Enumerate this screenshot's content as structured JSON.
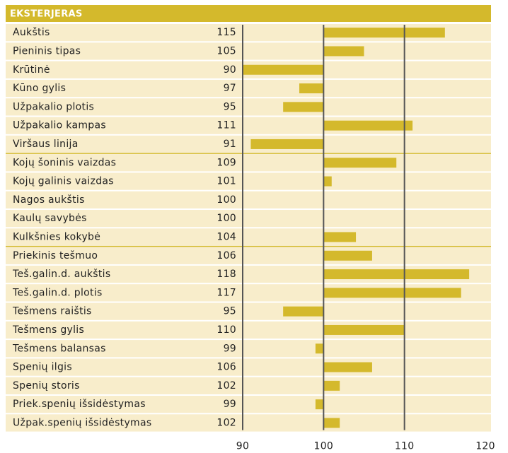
{
  "chart_data": {
    "type": "bar",
    "title": "EKSTERJERAS",
    "categories": [
      "Aukštis",
      "Pieninis tipas",
      "Krūtinė",
      "Kūno gylis",
      "Užpakalio plotis",
      "Užpakalio kampas",
      "Viršaus linija",
      "Kojų šoninis vaizdas",
      "Kojų galinis vaizdas",
      "Nagos aukštis",
      "Kaulų savybės",
      "Kulkšnies kokybė",
      "Priekinis tešmuo",
      "Teš.galin.d. aukštis",
      "Teš.galin.d. plotis",
      "Tešmens raištis",
      "Tešmens gylis",
      "Tešmens balansas",
      "Spenių ilgis",
      "Spenių storis",
      "Priek.spenių išsidėstymas",
      "Užpak.spenių išsidėstymas"
    ],
    "values": [
      115,
      105,
      90,
      97,
      95,
      111,
      91,
      109,
      101,
      100,
      100,
      104,
      106,
      118,
      117,
      95,
      110,
      99,
      106,
      102,
      99,
      102
    ],
    "baseline": 100,
    "color": "#d4b92c",
    "xlim": [
      90,
      120
    ],
    "xticks": [
      90,
      100,
      110,
      120
    ],
    "grid": true
  }
}
